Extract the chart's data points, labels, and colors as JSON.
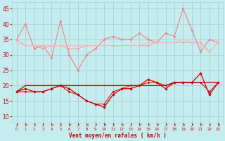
{
  "x": [
    0,
    1,
    2,
    3,
    4,
    5,
    6,
    7,
    8,
    9,
    10,
    11,
    12,
    13,
    14,
    15,
    16,
    17,
    18,
    19,
    20,
    21,
    22,
    23
  ],
  "line1": [
    35,
    40,
    32,
    33,
    29,
    41,
    30,
    25,
    30,
    32,
    35,
    36,
    35,
    35,
    37,
    35,
    34,
    37,
    36,
    45,
    38,
    31,
    35,
    34
  ],
  "line2": [
    35,
    33,
    33,
    32,
    33,
    33,
    32,
    32,
    33,
    33,
    33,
    33,
    33,
    33,
    33,
    33,
    34,
    34,
    34,
    34,
    34,
    34,
    31,
    34
  ],
  "line3": [
    34,
    33,
    33,
    33,
    33,
    33,
    33,
    33,
    33,
    33,
    33,
    33,
    33,
    33,
    33,
    34,
    34,
    34,
    34,
    35,
    34,
    33,
    31,
    34
  ],
  "line4": [
    18,
    19,
    18,
    18,
    19,
    20,
    19,
    17,
    15,
    14,
    13,
    17,
    19,
    19,
    20,
    22,
    21,
    19,
    21,
    21,
    21,
    24,
    17,
    21
  ],
  "line5": [
    18,
    18,
    18,
    18,
    19,
    20,
    18,
    17,
    15,
    14,
    14,
    18,
    19,
    20,
    20,
    21,
    21,
    20,
    21,
    21,
    21,
    21,
    18,
    21
  ],
  "line6": [
    18,
    20,
    20,
    20,
    20,
    20,
    20,
    20,
    20,
    20,
    20,
    20,
    20,
    20,
    20,
    20,
    20,
    20,
    21,
    21,
    21,
    21,
    21,
    21
  ],
  "bg_color": "#c5ecee",
  "grid_color": "#aad4d8",
  "line1_color": "#f08080",
  "line2_color": "#f4a0a0",
  "line3_color": "#f8b8b8",
  "line4_color": "#cc0000",
  "line5_color": "#cc0000",
  "line6_color": "#cc0000",
  "xlabel": "Vent moyen/en rafales ( km/h )",
  "xlabel_color": "#cc0000",
  "tick_color": "#cc0000",
  "ylim": [
    8,
    47
  ],
  "xlim": [
    -0.5,
    23.5
  ],
  "yticks": [
    10,
    15,
    20,
    25,
    30,
    35,
    40,
    45
  ]
}
